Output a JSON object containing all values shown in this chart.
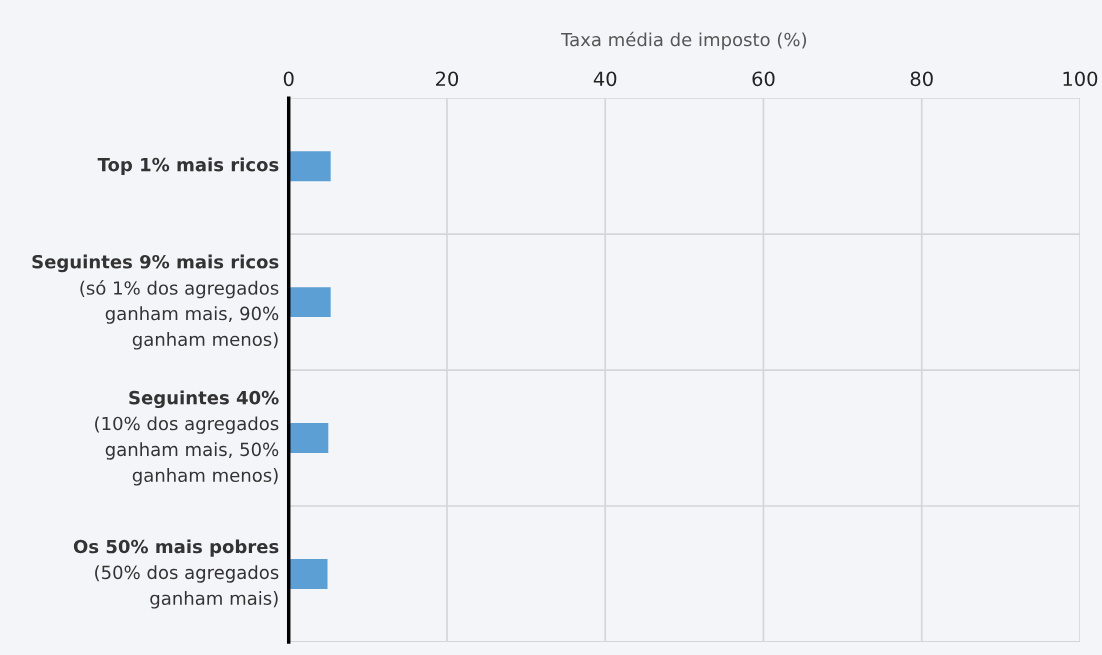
{
  "chart_data": {
    "type": "bar",
    "orientation": "horizontal",
    "xlabel": "Taxa média de imposto (%)",
    "categories": [
      "Top 1% mais ricos",
      "Seguintes 9% mais ricos\n(só 1% dos agregados\nganham mais, 90%\nganham menos)",
      "Seguintes 40%\n(10% dos agregados\nganham mais, 50%\nganham menos)",
      "Os 50% mais pobres\n(50% dos agregados\nganham mais)"
    ],
    "values": [
      5.3,
      5.3,
      5.0,
      4.9
    ],
    "color": "#5b9fd4",
    "xlim": [
      0,
      100
    ],
    "xticks": [
      0,
      20,
      40,
      60,
      80,
      100
    ],
    "grid": true
  }
}
